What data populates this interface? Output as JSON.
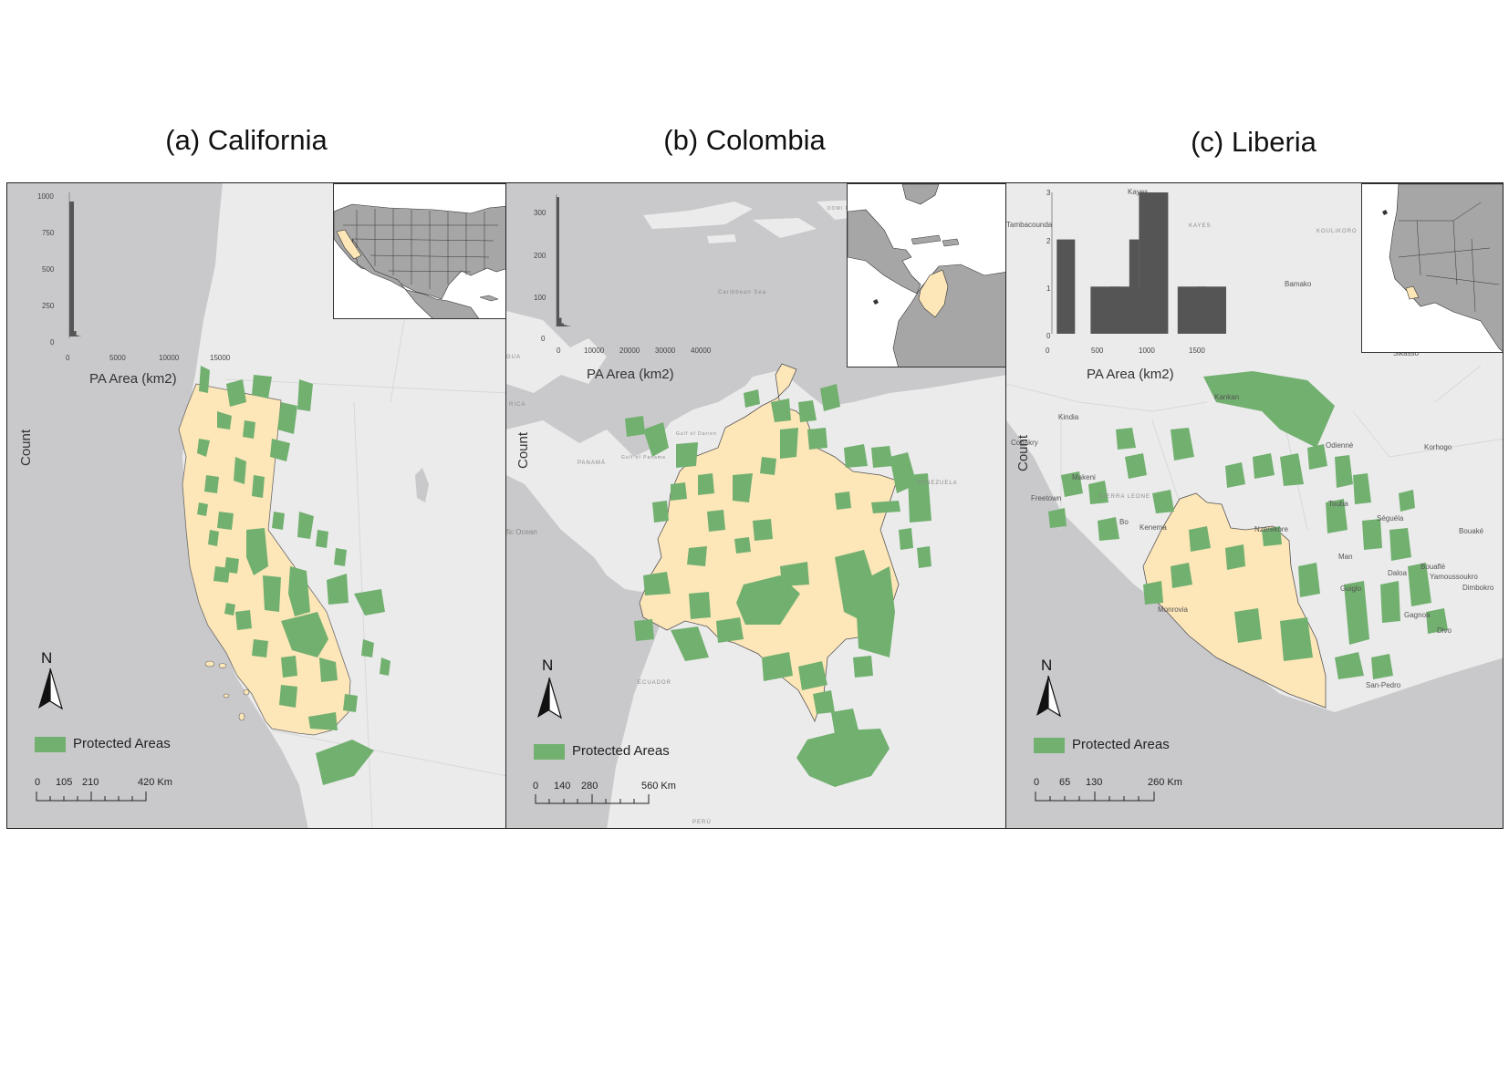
{
  "panels": [
    {
      "title": "(a) California",
      "hist": {
        "ylabel": "Count",
        "xlabel": "PA Area (km2)",
        "yticks": [
          "1000",
          "750",
          "500",
          "250",
          "0"
        ],
        "xticks": [
          "0",
          "5000",
          "10000",
          "15000"
        ]
      },
      "legend": "Protected Areas",
      "north": "N",
      "scale": [
        "0",
        "105",
        "210",
        "420 Km"
      ]
    },
    {
      "title": "(b) Colombia",
      "hist": {
        "ylabel": "Count",
        "xlabel": "PA Area (km2)",
        "yticks": [
          "300",
          "200",
          "100",
          "0"
        ],
        "xticks": [
          "0",
          "10000",
          "20000",
          "30000",
          "40000"
        ]
      },
      "legend": "Protected Areas",
      "north": "N",
      "scale": [
        "0",
        "140",
        "280",
        "560 Km"
      ],
      "places": [
        "Caribbean Sea",
        "VENEZUELA",
        "PANAMÁ",
        "Gulf of Panama",
        "Gulf of Darien",
        "ECUADOR",
        "PERÚ",
        "fic Ocean",
        "GUA",
        "RICA",
        "DOMI REPU"
      ]
    },
    {
      "title": "(c) Liberia",
      "hist": {
        "ylabel": "Count",
        "xlabel": "PA Area (km2)",
        "yticks": [
          "3",
          "2",
          "1",
          "0"
        ],
        "xticks": [
          "0",
          "500",
          "1000",
          "1500"
        ]
      },
      "legend": "Protected Areas",
      "north": "N",
      "scale": [
        "0",
        "65",
        "130",
        "260 Km"
      ],
      "places": [
        "Kayes",
        "Tambacounda",
        "KAYES",
        "KOULIKORO",
        "Bamako",
        "Kindia",
        "Kankan",
        "Conakry",
        "Odienné",
        "Korhogo",
        "Makeni",
        "Freetown",
        "SIERRA LEONE",
        "Bo",
        "Kenema",
        "Nzerekore",
        "Touba",
        "Séguéla",
        "Bouaké",
        "Man",
        "Bouaflé",
        "Yamoussoukro",
        "Daloa",
        "Guiglo",
        "Dimbokro",
        "Monrovia",
        "Gagnoa",
        "Divo",
        "San-Pedro",
        "Sikasso"
      ]
    }
  ],
  "colors": {
    "protected": "#72b070",
    "study_region": "#fde6b8",
    "land": "#ebebeb",
    "water": "#c9c9cc",
    "hist_bar": "#555555",
    "inset_land": "#a6a6a6"
  },
  "chart_data": [
    {
      "type": "bar",
      "title": "(a) California",
      "xlabel": "PA Area (km2)",
      "ylabel": "Count",
      "ylim": [
        0,
        1050
      ],
      "xlim": [
        0,
        16000
      ],
      "bins_x": [
        0,
        250,
        500,
        750
      ],
      "values": [
        1000,
        40,
        8,
        2
      ]
    },
    {
      "type": "bar",
      "title": "(b) Colombia",
      "xlabel": "PA Area (km2)",
      "ylabel": "Count",
      "ylim": [
        0,
        340
      ],
      "xlim": [
        0,
        45000
      ],
      "bins_x": [
        0,
        700,
        1400,
        2100,
        2800,
        3500
      ],
      "values": [
        330,
        22,
        8,
        4,
        2,
        1
      ]
    },
    {
      "type": "bar",
      "title": "(c) Liberia",
      "xlabel": "PA Area (km2)",
      "ylabel": "Count",
      "ylim": [
        0,
        3
      ],
      "xlim": [
        0,
        1700
      ],
      "bins_x": [
        50,
        400,
        600,
        800,
        900,
        1300,
        1500
      ],
      "values": [
        2,
        1,
        1,
        2,
        3,
        1,
        1
      ]
    }
  ]
}
